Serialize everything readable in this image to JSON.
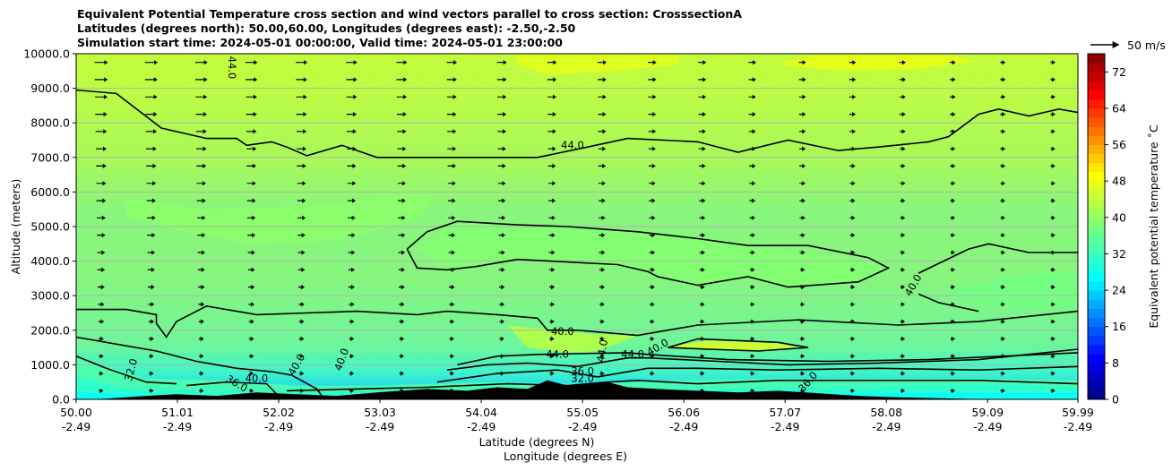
{
  "chart_data": {
    "type": "heatmap",
    "title": [
      "Equivalent Potential Temperature cross section and wind vectors parallel to cross section: CrosssectionA",
      "Latitudes (degrees north): 50.00,60.00, Longitudes (degrees east): -2.50,-2.50",
      "Simulation start time: 2024-05-01 00:00:00, Valid time: 2024-05-01 23:00:00"
    ],
    "xlabel": [
      "Latitude (degrees N)",
      "Longitude (degrees E)"
    ],
    "ylabel": "Altitude (meters)",
    "colorbar_label": "Equivalent potential temperature ˚C",
    "xlim": [
      50.0,
      59.99
    ],
    "ylim": [
      0,
      10000
    ],
    "x_ticks": [
      {
        "lat": "50.00",
        "lon": "-2.49",
        "value": 50.0
      },
      {
        "lat": "51.01",
        "lon": "-2.49",
        "value": 51.01
      },
      {
        "lat": "52.02",
        "lon": "-2.49",
        "value": 52.02
      },
      {
        "lat": "53.03",
        "lon": "-2.49",
        "value": 53.03
      },
      {
        "lat": "54.04",
        "lon": "-2.49",
        "value": 54.04
      },
      {
        "lat": "55.05",
        "lon": "-2.49",
        "value": 55.05
      },
      {
        "lat": "56.06",
        "lon": "-2.49",
        "value": 56.06
      },
      {
        "lat": "57.07",
        "lon": "-2.49",
        "value": 57.07
      },
      {
        "lat": "58.08",
        "lon": "-2.49",
        "value": 58.08
      },
      {
        "lat": "59.09",
        "lon": "-2.49",
        "value": 59.09
      },
      {
        "lat": "59.99",
        "lon": "-2.49",
        "value": 59.99
      }
    ],
    "y_ticks": [
      "0.0",
      "1000.0",
      "2000.0",
      "3000.0",
      "4000.0",
      "5000.0",
      "6000.0",
      "7000.0",
      "8000.0",
      "9000.0",
      "10000.0"
    ],
    "colorbar": {
      "range": [
        0,
        76
      ],
      "ticks": [
        "0",
        "8",
        "16",
        "24",
        "32",
        "40",
        "48",
        "56",
        "64",
        "72"
      ]
    },
    "quiver_key_label": "50 m/s",
    "contour_labels": [
      "44.0",
      "40.0",
      "36.0",
      "32.0"
    ],
    "grid": true,
    "contours": [
      {
        "level": 44.0,
        "points": [
          [
            50.0,
            8950
          ],
          [
            50.4,
            8850
          ],
          [
            50.85,
            7850
          ],
          [
            51.3,
            7550
          ],
          [
            51.6,
            7550
          ],
          [
            51.7,
            7350
          ],
          [
            51.95,
            7450
          ],
          [
            52.1,
            7300
          ],
          [
            52.3,
            7050
          ],
          [
            52.65,
            7350
          ],
          [
            53.0,
            7000
          ],
          [
            54.0,
            7000
          ],
          [
            54.6,
            7000
          ],
          [
            55.1,
            7300
          ],
          [
            55.5,
            7550
          ],
          [
            56.2,
            7450
          ],
          [
            56.6,
            7150
          ],
          [
            57.1,
            7500
          ],
          [
            57.6,
            7200
          ],
          [
            58.0,
            7300
          ],
          [
            58.5,
            7450
          ],
          [
            58.7,
            7600
          ],
          [
            59.0,
            8250
          ],
          [
            59.2,
            8400
          ],
          [
            59.5,
            8200
          ],
          [
            59.8,
            8400
          ],
          [
            59.99,
            8300
          ]
        ]
      },
      {
        "level": 40.0,
        "points": [
          [
            53.3,
            4350
          ],
          [
            53.5,
            4850
          ],
          [
            53.8,
            5150
          ],
          [
            54.4,
            5050
          ],
          [
            54.9,
            5000
          ],
          [
            55.6,
            4850
          ],
          [
            56.2,
            4650
          ],
          [
            56.7,
            4450
          ],
          [
            57.3,
            4450
          ],
          [
            57.9,
            4100
          ],
          [
            58.1,
            3800
          ],
          [
            57.8,
            3400
          ],
          [
            57.1,
            3250
          ],
          [
            56.7,
            3550
          ],
          [
            56.2,
            3300
          ],
          [
            55.8,
            3550
          ],
          [
            55.7,
            3700
          ],
          [
            55.4,
            3900
          ],
          [
            54.4,
            4050
          ],
          [
            54.0,
            3850
          ],
          [
            53.7,
            3750
          ],
          [
            53.4,
            3800
          ],
          [
            53.3,
            4350
          ]
        ]
      },
      {
        "level": 40.0,
        "points": [
          [
            50.0,
            2600
          ],
          [
            50.5,
            2600
          ],
          [
            50.8,
            2450
          ],
          [
            50.8,
            2200
          ],
          [
            50.9,
            1800
          ],
          [
            51.0,
            2250
          ],
          [
            51.3,
            2700
          ],
          [
            51.8,
            2450
          ],
          [
            52.3,
            2500
          ],
          [
            52.8,
            2550
          ],
          [
            53.4,
            2450
          ],
          [
            53.7,
            2550
          ],
          [
            54.2,
            2450
          ],
          [
            54.6,
            2350
          ],
          [
            54.7,
            2000
          ],
          [
            55.0,
            2000
          ],
          [
            55.6,
            1850
          ],
          [
            56.2,
            2150
          ],
          [
            57.2,
            2300
          ],
          [
            58.2,
            2150
          ],
          [
            59.0,
            2250
          ],
          [
            59.99,
            2550
          ]
        ]
      },
      {
        "level": 40.0,
        "points": [
          [
            58.4,
            3650
          ],
          [
            58.9,
            4350
          ],
          [
            59.1,
            4500
          ],
          [
            59.5,
            4250
          ],
          [
            59.99,
            4250
          ]
        ]
      },
      {
        "level": 40.0,
        "points": [
          [
            58.4,
            3050
          ],
          [
            58.6,
            2800
          ],
          [
            59.0,
            2550
          ]
        ]
      },
      {
        "level": 44.0,
        "points": [
          [
            55.9,
            1500
          ],
          [
            56.2,
            1750
          ],
          [
            57.0,
            1650
          ],
          [
            57.3,
            1500
          ],
          [
            56.8,
            1400
          ],
          [
            56.3,
            1450
          ],
          [
            55.9,
            1500
          ]
        ]
      },
      {
        "level": 44.0,
        "points": [
          [
            53.7,
            850
          ],
          [
            54.1,
            1000
          ],
          [
            54.5,
            1050
          ],
          [
            55.0,
            950
          ],
          [
            55.5,
            1200
          ],
          [
            55.7,
            1200
          ],
          [
            56.4,
            1100
          ],
          [
            57.1,
            1000
          ],
          [
            58.0,
            1050
          ],
          [
            59.0,
            1150
          ],
          [
            59.99,
            1450
          ]
        ]
      },
      {
        "level": 40.0,
        "points": [
          [
            53.8,
            1000
          ],
          [
            54.2,
            1250
          ],
          [
            54.6,
            1300
          ],
          [
            55.5,
            1350
          ],
          [
            55.7,
            1300
          ],
          [
            56.5,
            1150
          ],
          [
            57.5,
            1100
          ],
          [
            58.5,
            1150
          ],
          [
            59.99,
            1350
          ]
        ]
      },
      {
        "level": 36.0,
        "points": [
          [
            53.6,
            500
          ],
          [
            54.2,
            750
          ],
          [
            54.8,
            850
          ],
          [
            55.2,
            650
          ],
          [
            55.7,
            900
          ],
          [
            56.2,
            900
          ],
          [
            57.0,
            850
          ],
          [
            58.0,
            900
          ],
          [
            59.0,
            850
          ],
          [
            59.99,
            950
          ]
        ]
      },
      {
        "level": 32.0,
        "points": [
          [
            52.1,
            250
          ],
          [
            52.8,
            300
          ],
          [
            53.5,
            350
          ],
          [
            54.3,
            450
          ],
          [
            54.9,
            400
          ],
          [
            55.3,
            500
          ],
          [
            55.6,
            550
          ],
          [
            56.2,
            450
          ],
          [
            57.0,
            550
          ],
          [
            58.0,
            550
          ],
          [
            59.0,
            550
          ],
          [
            59.99,
            450
          ]
        ]
      },
      {
        "level": 36.0,
        "points": [
          [
            50.0,
            1800
          ],
          [
            50.3,
            1650
          ],
          [
            50.8,
            1400
          ],
          [
            51.2,
            1100
          ],
          [
            51.6,
            900
          ],
          [
            51.95,
            800
          ],
          [
            52.15,
            700
          ],
          [
            52.4,
            300
          ],
          [
            52.45,
            100
          ]
        ]
      },
      {
        "level": 32.0,
        "points": [
          [
            50.0,
            1250
          ],
          [
            50.3,
            900
          ],
          [
            50.7,
            500
          ],
          [
            51.0,
            450
          ]
        ]
      },
      {
        "level": 36.0,
        "points": [
          [
            51.1,
            400
          ],
          [
            51.5,
            500
          ],
          [
            51.9,
            450
          ],
          [
            52.0,
            150
          ]
        ]
      }
    ]
  }
}
